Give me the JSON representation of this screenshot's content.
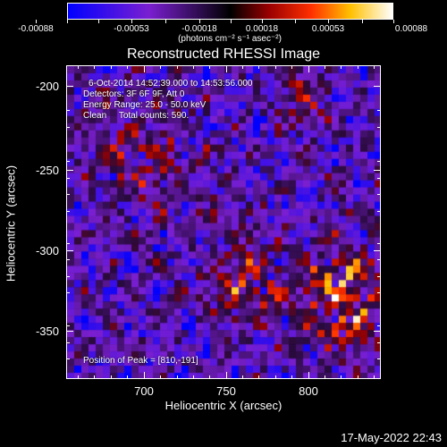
{
  "colorbar": {
    "tick_labels": [
      "-0.00088",
      "-0.00053",
      "-0.00018",
      "0.00018",
      "0.00053",
      "0.00088"
    ],
    "units": "(photons cm⁻² s⁻¹ asec⁻²)"
  },
  "title": "Reconstructed RHESSI Image",
  "info": {
    "time": "6-Oct-2014 14:52:39.000 to 14:53:56.000",
    "detectors": "Detectors: 3F 6F 9F, Att 0",
    "energy": "Energy Range: 25.0 - 50.0 keV",
    "clean": "Clean     Total counts: 590.",
    "peak": "Position of Peak = [810,-191]"
  },
  "axes": {
    "xlabel": "Heliocentric X (arcsec)",
    "ylabel": "Heliocentric Y (arcsec)",
    "xticks": [
      "700",
      "750",
      "800"
    ],
    "yticks": [
      "-200",
      "-250",
      "-300",
      "-350"
    ]
  },
  "timestamp": "17-May-2022 22:43",
  "colors": {
    "background": "#000000",
    "foreground": "#ffffff"
  }
}
